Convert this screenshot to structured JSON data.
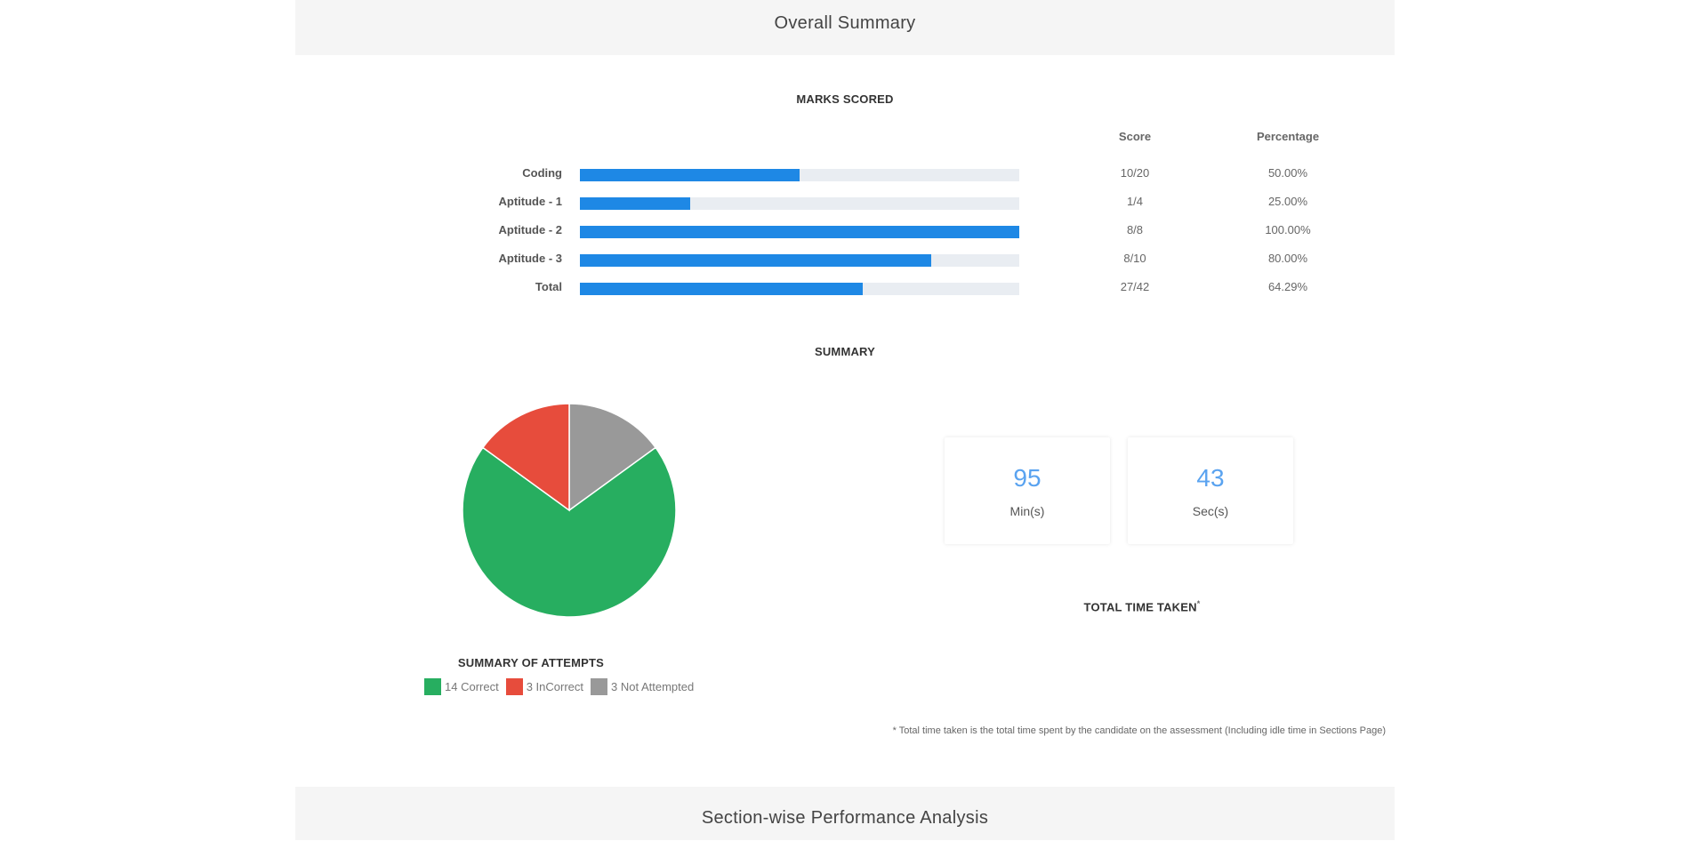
{
  "headers": {
    "overall_summary": "Overall Summary",
    "section_analysis": "Section-wise Performance Analysis"
  },
  "marks": {
    "title": "MARKS SCORED",
    "col_score": "Score",
    "col_percentage": "Percentage",
    "rows": [
      {
        "label": "Coding",
        "score": "10/20",
        "percentage": "50.00%",
        "fraction": 0.5
      },
      {
        "label": "Aptitude - 1",
        "score": "1/4",
        "percentage": "25.00%",
        "fraction": 0.25
      },
      {
        "label": "Aptitude - 2",
        "score": "8/8",
        "percentage": "100.00%",
        "fraction": 1.0
      },
      {
        "label": "Aptitude - 3",
        "score": "8/10",
        "percentage": "80.00%",
        "fraction": 0.8
      },
      {
        "label": "Total",
        "score": "27/42",
        "percentage": "64.29%",
        "fraction": 0.6429
      }
    ],
    "bar_color": "#1e88e5",
    "track_color": "#e9edf2"
  },
  "summary": {
    "title": "SUMMARY",
    "attempts_title": "SUMMARY OF ATTEMPTS",
    "legend": [
      {
        "text": "14 Correct",
        "color": "#27ae60"
      },
      {
        "text": "3 InCorrect",
        "color": "#e74c3c"
      },
      {
        "text": "3 Not Attempted",
        "color": "#999999"
      }
    ]
  },
  "chart_data": {
    "type": "pie",
    "categories": [
      "Correct",
      "InCorrect",
      "Not Attempted"
    ],
    "values": [
      14,
      3,
      3
    ],
    "colors": [
      "#27ae60",
      "#e74c3c",
      "#999999"
    ],
    "title": "SUMMARY OF ATTEMPTS"
  },
  "time": {
    "minutes": "95",
    "minutes_unit": "Min(s)",
    "seconds": "43",
    "seconds_unit": "Sec(s)",
    "title": "TOTAL TIME TAKEN",
    "asterisk": "*",
    "footnote": "* Total time taken is the total time spent by the candidate on the assessment (Including idle time in Sections Page)"
  }
}
